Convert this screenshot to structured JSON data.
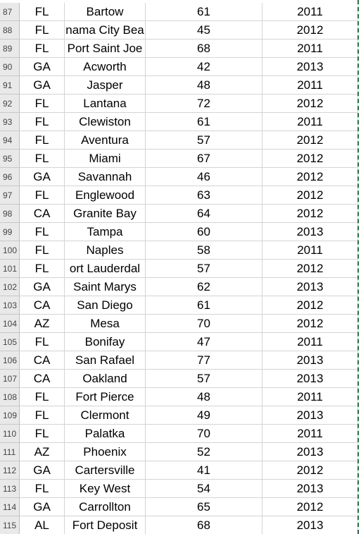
{
  "sheet": {
    "row_numbers": [
      87,
      88,
      89,
      90,
      91,
      92,
      93,
      94,
      95,
      96,
      97,
      98,
      99,
      100,
      101,
      102,
      103,
      104,
      105,
      106,
      107,
      108,
      109,
      110,
      111,
      112,
      113,
      114,
      115
    ],
    "rows": [
      [
        "FL",
        "Bartow",
        61,
        2011
      ],
      [
        "FL",
        "nama City Bea",
        45,
        2012
      ],
      [
        "FL",
        "Port Saint Joe",
        68,
        2011
      ],
      [
        "GA",
        "Acworth",
        42,
        2013
      ],
      [
        "GA",
        "Jasper",
        48,
        2011
      ],
      [
        "FL",
        "Lantana",
        72,
        2012
      ],
      [
        "FL",
        "Clewiston",
        61,
        2011
      ],
      [
        "FL",
        "Aventura",
        57,
        2012
      ],
      [
        "FL",
        "Miami",
        67,
        2012
      ],
      [
        "GA",
        "Savannah",
        46,
        2012
      ],
      [
        "FL",
        "Englewood",
        63,
        2012
      ],
      [
        "CA",
        "Granite Bay",
        64,
        2012
      ],
      [
        "FL",
        "Tampa",
        60,
        2013
      ],
      [
        "FL",
        "Naples",
        58,
        2011
      ],
      [
        "FL",
        "ort Lauderdal",
        57,
        2012
      ],
      [
        "GA",
        "Saint Marys",
        62,
        2013
      ],
      [
        "CA",
        "San Diego",
        61,
        2012
      ],
      [
        "AZ",
        "Mesa",
        70,
        2012
      ],
      [
        "FL",
        "Bonifay",
        47,
        2011
      ],
      [
        "CA",
        "San Rafael",
        77,
        2013
      ],
      [
        "CA",
        "Oakland",
        57,
        2013
      ],
      [
        "FL",
        "Fort Pierce",
        48,
        2011
      ],
      [
        "FL",
        "Clermont",
        49,
        2013
      ],
      [
        "FL",
        "Palatka",
        70,
        2011
      ],
      [
        "AZ",
        "Phoenix",
        52,
        2013
      ],
      [
        "GA",
        "Cartersville",
        41,
        2012
      ],
      [
        "FL",
        "Key West",
        54,
        2013
      ],
      [
        "GA",
        "Carrollton",
        65,
        2012
      ],
      [
        "AL",
        "Fort Deposit",
        68,
        2013
      ]
    ]
  }
}
